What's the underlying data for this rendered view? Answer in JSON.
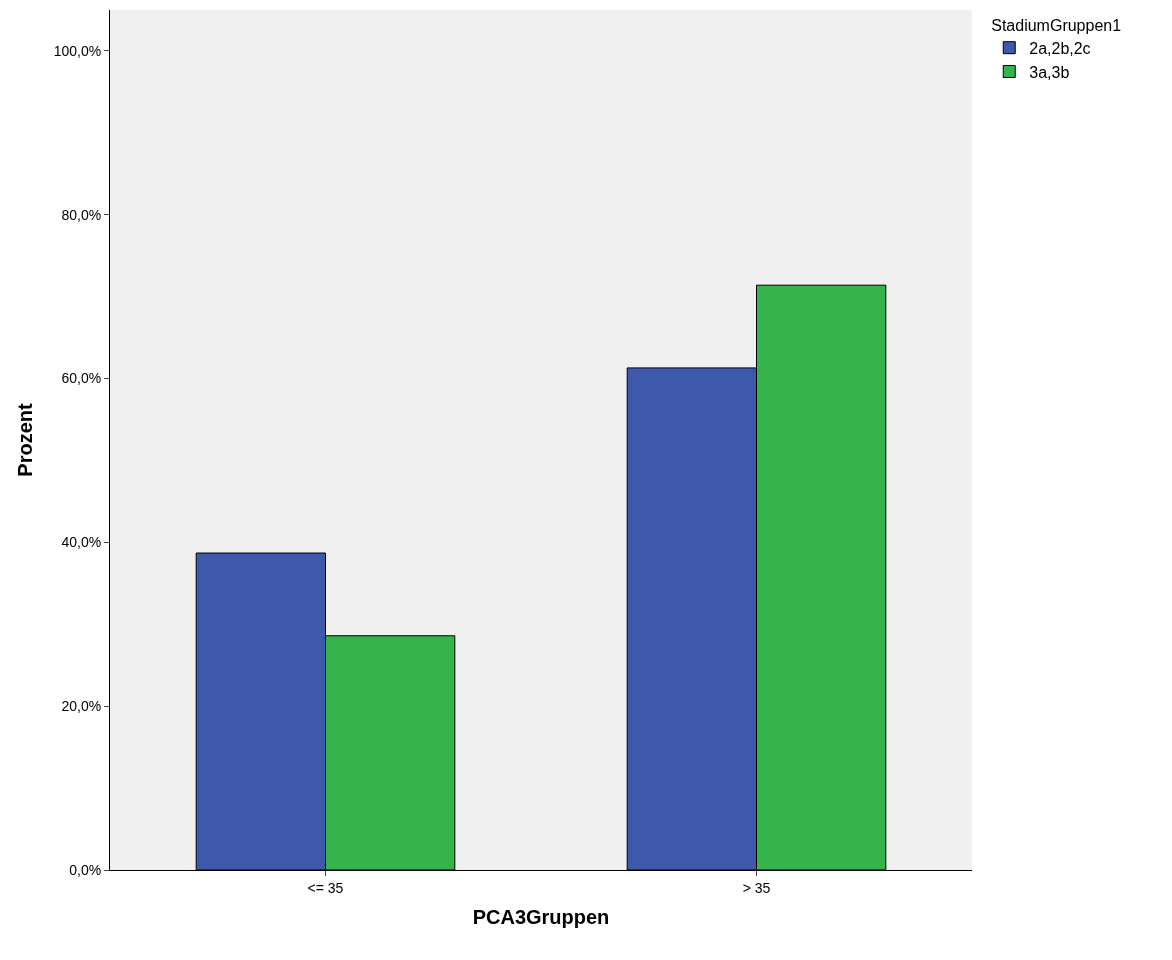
{
  "chart_data": {
    "type": "bar",
    "xlabel": "PCA3Gruppen",
    "ylabel": "Prozent",
    "legend_title": "StadiumGruppen1",
    "categories": [
      "<= 35",
      "> 35"
    ],
    "series": [
      {
        "name": "2a,2b,2c",
        "color": "#3e58ac",
        "values": [
          38.7,
          61.3
        ]
      },
      {
        "name": "3a,3b",
        "color": "#34b44a",
        "values": [
          28.6,
          71.4
        ]
      }
    ],
    "ylim": [
      0,
      105
    ],
    "yticks": [
      {
        "value": 0,
        "label": "0,0%"
      },
      {
        "value": 20,
        "label": "20,0%"
      },
      {
        "value": 40,
        "label": "40,0%"
      },
      {
        "value": 60,
        "label": "60,0%"
      },
      {
        "value": 80,
        "label": "80,0%"
      },
      {
        "value": 100,
        "label": "100,0%"
      }
    ],
    "grid": false,
    "legend": "top right"
  }
}
